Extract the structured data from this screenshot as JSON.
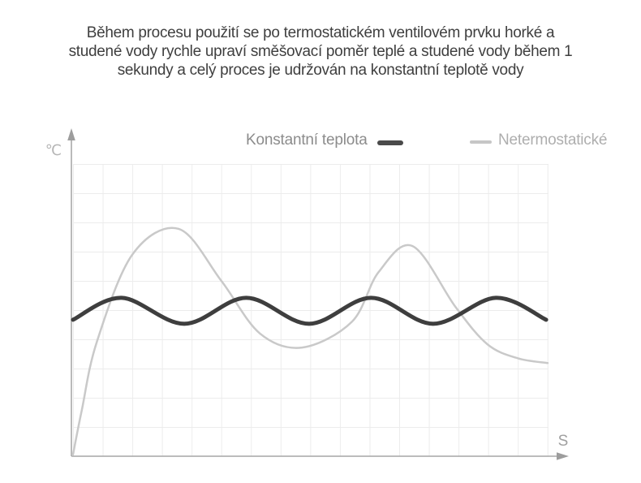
{
  "title": {
    "lines": [
      "Během procesu použití se po termostatickém ventilovém prvku horké a",
      "studené vody rychle upraví směšovací poměr teplé a studené vody během 1",
      "sekundy a celý proces je udržován na konstantní teplotě vody"
    ]
  },
  "legend": [
    {
      "label": "Konstantní teplota",
      "swatch_color": "#4a4a4a"
    },
    {
      "label": "Netermostatické",
      "swatch_color": "#c6c6c6"
    }
  ],
  "axes": {
    "y_label": "℃",
    "x_label": "S",
    "axis_color": "#a9a9a9",
    "y_label_color": "#b5b5b5",
    "x_label_color": "#a0a0a0"
  },
  "grid": {
    "color": "#ececec",
    "columns": 16,
    "rows": 10
  },
  "chart_data": {
    "type": "line",
    "title": "",
    "xlabel": "S",
    "ylabel": "℃",
    "x_range_grid_units": [
      0,
      16
    ],
    "y_range_grid_units": [
      0,
      10
    ],
    "grid": "on",
    "legend_position": "top",
    "axis_ticks_labeled": false,
    "series": [
      {
        "name": "Konstantní teplota",
        "color": "#3e3e3e",
        "stroke_width": 5,
        "points": [
          [
            0,
            4.67
          ],
          [
            1.64,
            5.42
          ],
          [
            3.75,
            4.53
          ],
          [
            5.84,
            5.42
          ],
          [
            7.95,
            4.53
          ],
          [
            10.05,
            5.42
          ],
          [
            12.14,
            4.53
          ],
          [
            14.25,
            5.42
          ],
          [
            15.95,
            4.67
          ]
        ]
      },
      {
        "name": "Netermostatické",
        "color": "#c9c9c9",
        "stroke_width": 2.5,
        "points": [
          [
            0.0,
            0.06
          ],
          [
            0.3,
            1.6
          ],
          [
            0.8,
            3.9
          ],
          [
            2.0,
            6.9
          ],
          [
            3.56,
            7.78
          ],
          [
            5.0,
            6.0
          ],
          [
            6.3,
            4.2
          ],
          [
            7.73,
            3.72
          ],
          [
            9.4,
            4.6
          ],
          [
            10.3,
            6.3
          ],
          [
            11.45,
            7.19
          ],
          [
            12.9,
            5.1
          ],
          [
            13.97,
            3.83
          ],
          [
            15.0,
            3.35
          ],
          [
            16,
            3.19
          ]
        ]
      }
    ]
  }
}
